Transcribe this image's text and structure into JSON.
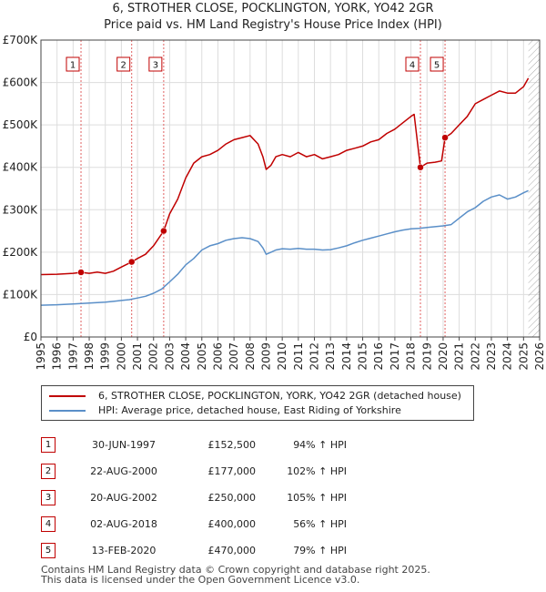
{
  "chart_data": {
    "type": "line",
    "title": "6, STROTHER CLOSE, POCKLINGTON, YORK, YO42 2GR",
    "subtitle": "Price paid vs. HM Land Registry's House Price Index (HPI)",
    "x_ticks": [
      "1995",
      "1996",
      "1997",
      "1998",
      "1999",
      "2000",
      "2001",
      "2002",
      "2003",
      "2004",
      "2005",
      "2006",
      "2007",
      "2008",
      "2009",
      "2010",
      "2011",
      "2012",
      "2013",
      "2014",
      "2015",
      "2016",
      "2017",
      "2018",
      "2019",
      "2020",
      "2021",
      "2022",
      "2023",
      "2024",
      "2025",
      "2026"
    ],
    "y_ticks": [
      "£0",
      "£100K",
      "£200K",
      "£300K",
      "£400K",
      "£500K",
      "£600K",
      "£700K"
    ],
    "xlim": [
      1995,
      2026
    ],
    "ylim": [
      0,
      700000
    ],
    "data_end": 2025.3,
    "colors": {
      "price": "#c00000",
      "hpi": "#5a8fc8",
      "sale_line": "#e06060",
      "hatch": "#aaaaaa"
    },
    "series": [
      {
        "name": "6, STROTHER CLOSE, POCKLINGTON, YORK, YO42 2GR (detached house)",
        "x": [
          1995.0,
          1996.0,
          1997.0,
          1997.5,
          1998.0,
          1998.5,
          1999.0,
          1999.5,
          2000.0,
          2000.64,
          2001.0,
          2001.5,
          2002.0,
          2002.63,
          2003.0,
          2003.5,
          2004.0,
          2004.5,
          2005.0,
          2005.5,
          2006.0,
          2006.5,
          2007.0,
          2007.5,
          2008.0,
          2008.5,
          2008.8,
          2009.0,
          2009.3,
          2009.6,
          2010.0,
          2010.5,
          2011.0,
          2011.5,
          2012.0,
          2012.5,
          2013.0,
          2013.5,
          2014.0,
          2014.5,
          2015.0,
          2015.5,
          2016.0,
          2016.5,
          2017.0,
          2017.5,
          2018.0,
          2018.2,
          2018.59,
          2018.8,
          2019.0,
          2019.5,
          2019.9,
          2020.12,
          2020.5,
          2021.0,
          2021.5,
          2022.0,
          2022.5,
          2023.0,
          2023.5,
          2024.0,
          2024.5,
          2025.0,
          2025.3
        ],
        "values": [
          147000,
          148000,
          150000,
          152500,
          150000,
          153000,
          150000,
          155000,
          165000,
          177000,
          185000,
          195000,
          215000,
          250000,
          290000,
          325000,
          375000,
          410000,
          425000,
          430000,
          440000,
          455000,
          465000,
          470000,
          475000,
          455000,
          425000,
          395000,
          405000,
          425000,
          430000,
          425000,
          435000,
          425000,
          430000,
          420000,
          425000,
          430000,
          440000,
          445000,
          450000,
          460000,
          465000,
          480000,
          490000,
          505000,
          520000,
          525000,
          400000,
          405000,
          410000,
          412000,
          415000,
          470000,
          480000,
          500000,
          520000,
          550000,
          560000,
          570000,
          580000,
          575000,
          575000,
          590000,
          610000
        ]
      },
      {
        "name": "HPI: Average price, detached house, East Riding of Yorkshire",
        "x": [
          1995.0,
          1996.0,
          1997.0,
          1997.5,
          1998.0,
          1998.5,
          1999.0,
          1999.5,
          2000.0,
          2000.5,
          2001.0,
          2001.5,
          2002.0,
          2002.5,
          2003.0,
          2003.5,
          2004.0,
          2004.5,
          2005.0,
          2005.5,
          2006.0,
          2006.5,
          2007.0,
          2007.5,
          2008.0,
          2008.5,
          2008.8,
          2009.0,
          2009.3,
          2009.6,
          2010.0,
          2010.5,
          2011.0,
          2011.5,
          2012.0,
          2012.5,
          2013.0,
          2013.5,
          2014.0,
          2014.5,
          2015.0,
          2015.5,
          2016.0,
          2016.5,
          2017.0,
          2017.5,
          2018.0,
          2018.5,
          2019.0,
          2019.5,
          2020.0,
          2020.5,
          2021.0,
          2021.5,
          2022.0,
          2022.5,
          2023.0,
          2023.5,
          2024.0,
          2024.5,
          2025.0,
          2025.3
        ],
        "values": [
          75000,
          76000,
          78000,
          79000,
          80000,
          81000,
          82000,
          84000,
          86000,
          88000,
          92000,
          96000,
          103000,
          113000,
          130000,
          148000,
          170000,
          185000,
          205000,
          215000,
          220000,
          228000,
          232000,
          234000,
          232000,
          225000,
          210000,
          195000,
          200000,
          205000,
          208000,
          207000,
          209000,
          207000,
          207000,
          205000,
          206000,
          210000,
          215000,
          222000,
          228000,
          233000,
          238000,
          243000,
          248000,
          252000,
          255000,
          256000,
          258000,
          260000,
          262000,
          265000,
          280000,
          295000,
          305000,
          320000,
          330000,
          335000,
          325000,
          330000,
          340000,
          345000
        ]
      }
    ],
    "sales": [
      {
        "label": "1",
        "x": 1997.49,
        "value": 152500
      },
      {
        "label": "2",
        "x": 2000.64,
        "value": 177000
      },
      {
        "label": "3",
        "x": 2002.63,
        "value": 250000
      },
      {
        "label": "4",
        "x": 2018.59,
        "value": 400000
      },
      {
        "label": "5",
        "x": 2020.12,
        "value": 470000
      }
    ]
  },
  "header": {
    "title": "6, STROTHER CLOSE, POCKLINGTON, YORK, YO42 2GR",
    "subtitle": "Price paid vs. HM Land Registry's House Price Index (HPI)"
  },
  "legend": {
    "price_label": "6, STROTHER CLOSE, POCKLINGTON, YORK, YO42 2GR (detached house)",
    "hpi_label": "HPI: Average price, detached house, East Riding of Yorkshire"
  },
  "transactions": [
    {
      "num": "1",
      "date": "30-JUN-1997",
      "price": "£152,500",
      "hpi": "94% ↑ HPI"
    },
    {
      "num": "2",
      "date": "22-AUG-2000",
      "price": "£177,000",
      "hpi": "102% ↑ HPI"
    },
    {
      "num": "3",
      "date": "20-AUG-2002",
      "price": "£250,000",
      "hpi": "105% ↑ HPI"
    },
    {
      "num": "4",
      "date": "02-AUG-2018",
      "price": "£400,000",
      "hpi": "56% ↑ HPI"
    },
    {
      "num": "5",
      "date": "13-FEB-2020",
      "price": "£470,000",
      "hpi": "79% ↑ HPI"
    }
  ],
  "footer": {
    "line1": "Contains HM Land Registry data © Crown copyright and database right 2025.",
    "line2": "This data is licensed under the Open Government Licence v3.0."
  }
}
